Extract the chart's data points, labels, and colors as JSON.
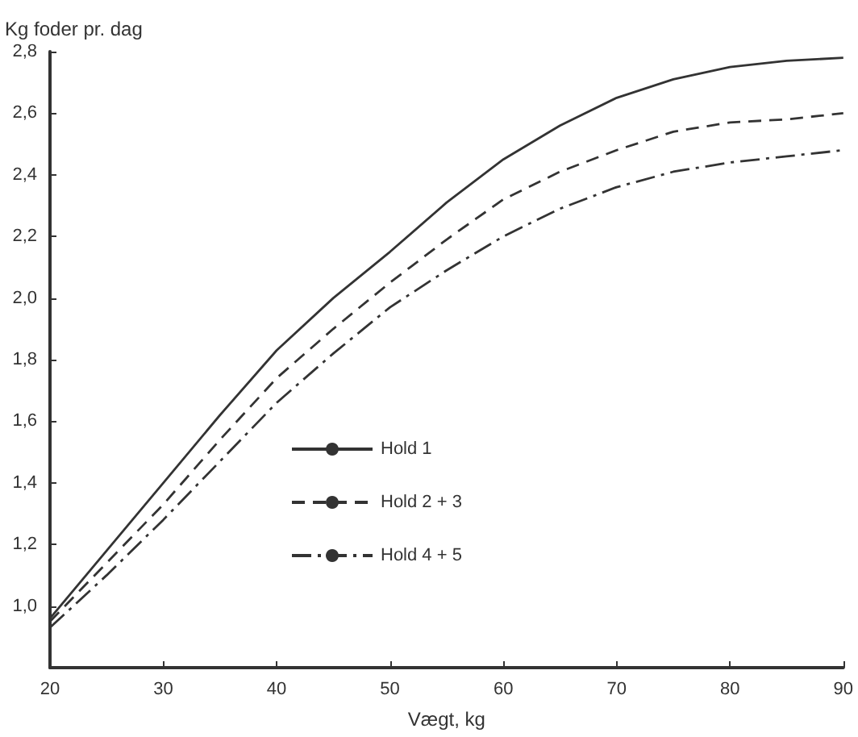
{
  "chart_data": {
    "type": "line",
    "ylabel": "Kg foder pr. dag",
    "xlabel": "Vægt, kg",
    "x": [
      20,
      25,
      30,
      35,
      40,
      45,
      50,
      55,
      60,
      65,
      70,
      75,
      80,
      85,
      90
    ],
    "series": [
      {
        "name": "Hold 1",
        "color": "#333333",
        "line_style": "solid",
        "values": [
          0.96,
          1.18,
          1.4,
          1.62,
          1.83,
          2.0,
          2.15,
          2.31,
          2.45,
          2.56,
          2.65,
          2.71,
          2.75,
          2.77,
          2.78
        ]
      },
      {
        "name": "Hold 2 + 3",
        "color": "#333333",
        "line_style": "dashed",
        "values": [
          0.95,
          1.14,
          1.33,
          1.54,
          1.74,
          1.9,
          2.05,
          2.19,
          2.32,
          2.41,
          2.48,
          2.54,
          2.57,
          2.58,
          2.6
        ]
      },
      {
        "name": "Hold 4 + 5",
        "color": "#333333",
        "line_style": "dashdot",
        "values": [
          0.93,
          1.1,
          1.28,
          1.47,
          1.66,
          1.82,
          1.97,
          2.09,
          2.2,
          2.29,
          2.36,
          2.41,
          2.44,
          2.46,
          2.48
        ]
      }
    ],
    "xlim": [
      20,
      90
    ],
    "xticks": [
      20,
      30,
      40,
      50,
      60,
      70,
      80,
      90
    ],
    "ylim": [
      0.8,
      2.8
    ],
    "yticks": [
      {
        "value": 1.0,
        "label": "1,0"
      },
      {
        "value": 1.2,
        "label": "1,2"
      },
      {
        "value": 1.4,
        "label": "1,4"
      },
      {
        "value": 1.6,
        "label": "1,6"
      },
      {
        "value": 1.8,
        "label": "1,8"
      },
      {
        "value": 2.0,
        "label": "2,0"
      },
      {
        "value": 2.2,
        "label": "2,2"
      },
      {
        "value": 2.4,
        "label": "2,4"
      },
      {
        "value": 2.6,
        "label": "2,6"
      },
      {
        "value": 2.8,
        "label": "2,8"
      }
    ],
    "grid": false,
    "legend": "center",
    "marker": "none"
  }
}
